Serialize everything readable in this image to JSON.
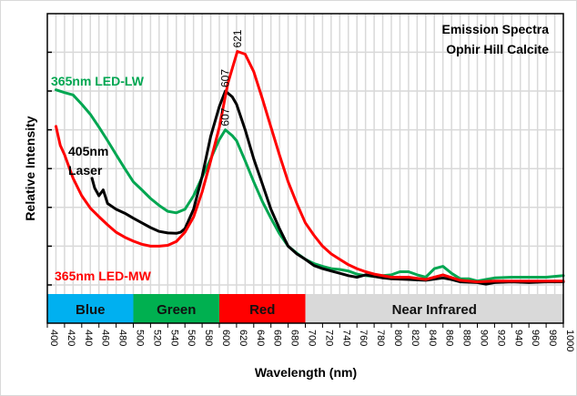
{
  "chart_data": {
    "type": "line",
    "title_lines": [
      "Emission Spectra",
      "Ophir Hill Calcite"
    ],
    "xlabel": "Wavelength (nm)",
    "ylabel": "Relative Intensity",
    "xlim": [
      400,
      1000
    ],
    "ylim": [
      0,
      7
    ],
    "x_ticks": [
      400,
      420,
      440,
      460,
      480,
      500,
      520,
      540,
      560,
      580,
      600,
      620,
      640,
      660,
      680,
      700,
      720,
      740,
      760,
      780,
      800,
      820,
      840,
      860,
      880,
      900,
      920,
      940,
      960,
      980,
      1000
    ],
    "y_ticks": [
      0,
      1,
      2,
      3,
      4,
      5,
      6
    ],
    "y_tick_labels_shown": false,
    "grid": true,
    "bands": [
      {
        "label": "Blue",
        "from": 400,
        "to": 500,
        "color": "#00b0f0"
      },
      {
        "label": "Green",
        "from": 500,
        "to": 600,
        "color": "#00b050"
      },
      {
        "label": "Red",
        "from": 600,
        "to": 700,
        "color": "#ff0000"
      },
      {
        "label": "Near Infrared",
        "from": 700,
        "to": 1000,
        "color": "#d9d9d9"
      }
    ],
    "series": [
      {
        "name": "365nm LED-LW",
        "color": "#00a651",
        "peak_label": "607",
        "peak_x": 607,
        "x": [
          410,
          420,
          430,
          440,
          450,
          460,
          470,
          480,
          490,
          500,
          510,
          520,
          530,
          540,
          550,
          560,
          570,
          580,
          590,
          600,
          607,
          615,
          620,
          630,
          640,
          650,
          660,
          670,
          680,
          690,
          700,
          710,
          720,
          730,
          740,
          750,
          760,
          770,
          780,
          790,
          800,
          810,
          820,
          830,
          840,
          850,
          860,
          870,
          880,
          890,
          900,
          910,
          920,
          940,
          960,
          980,
          1000
        ],
        "values": [
          5.03,
          4.96,
          4.9,
          4.66,
          4.4,
          4.07,
          3.72,
          3.36,
          3.0,
          2.66,
          2.45,
          2.23,
          2.05,
          1.9,
          1.86,
          1.95,
          2.3,
          2.78,
          3.25,
          3.75,
          4.0,
          3.85,
          3.72,
          3.2,
          2.66,
          2.15,
          1.72,
          1.32,
          1.0,
          0.82,
          0.66,
          0.55,
          0.48,
          0.42,
          0.4,
          0.36,
          0.28,
          0.24,
          0.22,
          0.24,
          0.26,
          0.34,
          0.34,
          0.26,
          0.2,
          0.42,
          0.48,
          0.3,
          0.16,
          0.16,
          0.1,
          0.14,
          0.18,
          0.2,
          0.2,
          0.2,
          0.24
        ]
      },
      {
        "name": "405nm Laser",
        "color": "#000000",
        "peak_label": "607",
        "peak_x": 607,
        "x": [
          452,
          455,
          460,
          465,
          470,
          480,
          490,
          500,
          510,
          520,
          530,
          540,
          550,
          555,
          560,
          570,
          580,
          590,
          600,
          607,
          615,
          620,
          630,
          640,
          650,
          660,
          670,
          680,
          690,
          700,
          710,
          720,
          730,
          740,
          750,
          760,
          770,
          780,
          790,
          800,
          820,
          840,
          860,
          870,
          880,
          900,
          910,
          920,
          940,
          960,
          980,
          1000
        ],
        "values": [
          2.75,
          2.5,
          2.3,
          2.45,
          2.1,
          1.95,
          1.85,
          1.72,
          1.6,
          1.48,
          1.38,
          1.34,
          1.33,
          1.36,
          1.45,
          1.95,
          2.8,
          3.83,
          4.6,
          5.0,
          4.85,
          4.66,
          4.0,
          3.25,
          2.6,
          1.95,
          1.45,
          1.0,
          0.8,
          0.66,
          0.5,
          0.42,
          0.36,
          0.3,
          0.24,
          0.2,
          0.26,
          0.22,
          0.18,
          0.16,
          0.14,
          0.12,
          0.18,
          0.14,
          0.08,
          0.06,
          0.02,
          0.06,
          0.08,
          0.06,
          0.08,
          0.08
        ]
      },
      {
        "name": "365nm LED-MW",
        "color": "#ff0000",
        "peak_label": "621",
        "peak_x": 621,
        "x": [
          410,
          415,
          420,
          430,
          440,
          450,
          460,
          470,
          480,
          490,
          500,
          510,
          520,
          530,
          540,
          550,
          560,
          570,
          580,
          590,
          600,
          610,
          621,
          630,
          640,
          650,
          660,
          670,
          680,
          690,
          700,
          710,
          720,
          730,
          740,
          750,
          760,
          770,
          780,
          800,
          820,
          840,
          860,
          880,
          900,
          920,
          940,
          960,
          980,
          1000
        ],
        "values": [
          4.09,
          3.6,
          3.36,
          2.75,
          2.3,
          1.98,
          1.76,
          1.55,
          1.36,
          1.23,
          1.13,
          1.05,
          1.0,
          1.0,
          1.02,
          1.12,
          1.36,
          1.75,
          2.4,
          3.2,
          4.07,
          5.2,
          6.02,
          5.95,
          5.5,
          4.8,
          4.07,
          3.35,
          2.66,
          2.1,
          1.6,
          1.28,
          1.0,
          0.8,
          0.66,
          0.52,
          0.42,
          0.34,
          0.28,
          0.2,
          0.2,
          0.14,
          0.26,
          0.12,
          0.08,
          0.1,
          0.1,
          0.1,
          0.1,
          0.1
        ]
      }
    ],
    "annotations": [
      {
        "text": "365nm LED-LW",
        "color": "#00a651"
      },
      {
        "text": "405nm",
        "color": "#000000"
      },
      {
        "text": "Laser",
        "color": "#000000"
      },
      {
        "text": "365nm LED-MW",
        "color": "#ff0000"
      }
    ]
  }
}
